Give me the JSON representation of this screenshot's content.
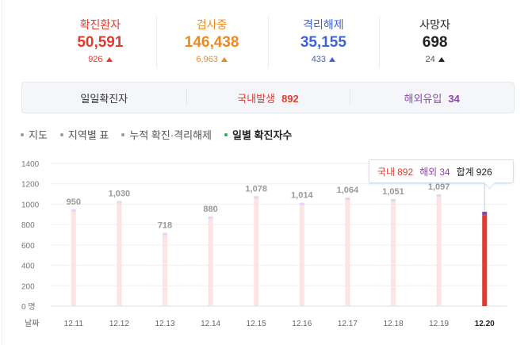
{
  "colors": {
    "confirmed": "#e03c2f",
    "tested": "#ee8a1d",
    "released": "#3f64d3",
    "deaths": "#222222",
    "domestic": "#e03c2f",
    "overseas": "#8e44ad",
    "bar_light": "#fde4e4",
    "bar_cap": "#e5d6f5"
  },
  "stats": [
    {
      "label": "확진환자",
      "value": "50,591",
      "delta": "926"
    },
    {
      "label": "검사중",
      "value": "146,438",
      "delta": "6,963"
    },
    {
      "label": "격리해제",
      "value": "35,155",
      "delta": "433"
    },
    {
      "label": "사망자",
      "value": "698",
      "delta": "24"
    }
  ],
  "daily": {
    "title": "일일확진자",
    "domestic_label": "국내발생",
    "domestic_value": "892",
    "overseas_label": "해외유입",
    "overseas_value": "34"
  },
  "tabs": [
    {
      "label": "지도",
      "active": false
    },
    {
      "label": "지역별 표",
      "active": false
    },
    {
      "label": "누적 확진·격리해제",
      "active": false
    },
    {
      "label": "일별 확진자수",
      "active": true
    }
  ],
  "tooltip": {
    "domestic_label": "국내",
    "domestic_value": "892",
    "overseas_label": "해외",
    "overseas_value": "34",
    "total_label": "합계",
    "total_value": "926"
  },
  "chart_data": {
    "type": "bar",
    "categories": [
      "12.11",
      "12.12",
      "12.13",
      "12.14",
      "12.15",
      "12.16",
      "12.17",
      "12.18",
      "12.19",
      "12.20"
    ],
    "values": [
      950,
      1030,
      718,
      880,
      1078,
      1014,
      1064,
      1051,
      1097,
      926
    ],
    "value_labels": [
      "950",
      "1,030",
      "718",
      "880",
      "1,078",
      "1,014",
      "1,064",
      "1,051",
      "1,097",
      ""
    ],
    "last_series": [
      {
        "name": "국내",
        "value": 892
      },
      {
        "name": "해외",
        "value": 34
      }
    ],
    "ylim": [
      0,
      1400
    ],
    "yticks": [
      "0 명",
      "200",
      "400",
      "600",
      "800",
      "1000",
      "1200",
      "1400"
    ],
    "xlabel": "날짜",
    "grid": true
  }
}
